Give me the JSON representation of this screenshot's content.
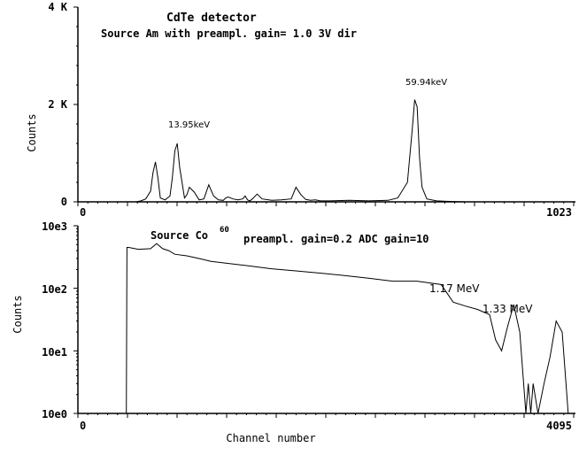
{
  "chart_data": [
    {
      "type": "line",
      "title": "CdTe  detector",
      "subtitle": "Source Am  with preampl. gain= 1.0 3V dir",
      "xlabel": "",
      "ylabel": "Counts",
      "xlim": [
        0,
        1023
      ],
      "ylim": [
        0,
        4000
      ],
      "x_tick_labels": [
        "0",
        "1023"
      ],
      "y_tick_labels": [
        "0",
        "2 K",
        "4 K"
      ],
      "annotations": [
        "13.95keV",
        "59.94keV"
      ],
      "series": [
        {
          "x": [
            0,
            120,
            130,
            140,
            150,
            155,
            160,
            165,
            170,
            180,
            190,
            195,
            200,
            205,
            210,
            220,
            225,
            230,
            240,
            250,
            260,
            270,
            280,
            290,
            300,
            305,
            310,
            320,
            330,
            340,
            345,
            350,
            355,
            360,
            370,
            380,
            400,
            420,
            440,
            450,
            460,
            470,
            480,
            490,
            500,
            520,
            560,
            600,
            640,
            660,
            680,
            690,
            695,
            700,
            705,
            710,
            720,
            740,
            760,
            800,
            1023
          ],
          "y": [
            0,
            0,
            20,
            60,
            220,
            600,
            820,
            500,
            80,
            40,
            120,
            500,
            1050,
            1200,
            700,
            80,
            150,
            300,
            200,
            40,
            60,
            350,
            120,
            40,
            30,
            80,
            100,
            60,
            40,
            60,
            120,
            40,
            20,
            60,
            160,
            60,
            30,
            40,
            60,
            300,
            150,
            50,
            30,
            40,
            20,
            20,
            30,
            20,
            30,
            80,
            400,
            1500,
            2100,
            1950,
            900,
            300,
            60,
            20,
            10,
            0,
            0
          ]
        }
      ]
    },
    {
      "type": "line",
      "title": "Source Co",
      "title_superscript": "60",
      "subtitle": "preampl. gain=0.2 ADC gain=10",
      "xlabel": "Channel number",
      "ylabel": "Counts",
      "xlim": [
        0,
        4095
      ],
      "ylim": [
        1,
        1000
      ],
      "y_scale": "log",
      "x_tick_labels": [
        "0",
        "4095"
      ],
      "y_tick_labels": [
        "10e0",
        "10e1",
        "10e2",
        "10e3"
      ],
      "annotations": [
        "1.17 MeV",
        "1.33 MeV"
      ],
      "series": [
        {
          "x": [
            0,
            395,
            400,
            405,
            420,
            500,
            600,
            650,
            700,
            750,
            800,
            900,
            1000,
            1100,
            1200,
            1400,
            1600,
            1800,
            2000,
            2200,
            2400,
            2600,
            2800,
            3000,
            3100,
            3200,
            3300,
            3400,
            3450,
            3500,
            3550,
            3600,
            3650,
            3700,
            3720,
            3740,
            3760,
            3800,
            3850,
            3900,
            3950,
            4000,
            4050,
            4095
          ],
          "y": [
            1,
            1,
            1,
            450,
            450,
            420,
            430,
            520,
            430,
            400,
            350,
            330,
            300,
            270,
            255,
            230,
            205,
            190,
            175,
            160,
            145,
            130,
            130,
            115,
            60,
            52,
            46,
            38,
            15,
            10,
            25,
            55,
            20,
            1,
            3,
            1,
            3,
            1,
            3,
            8,
            30,
            20,
            1,
            1
          ]
        }
      ]
    }
  ]
}
